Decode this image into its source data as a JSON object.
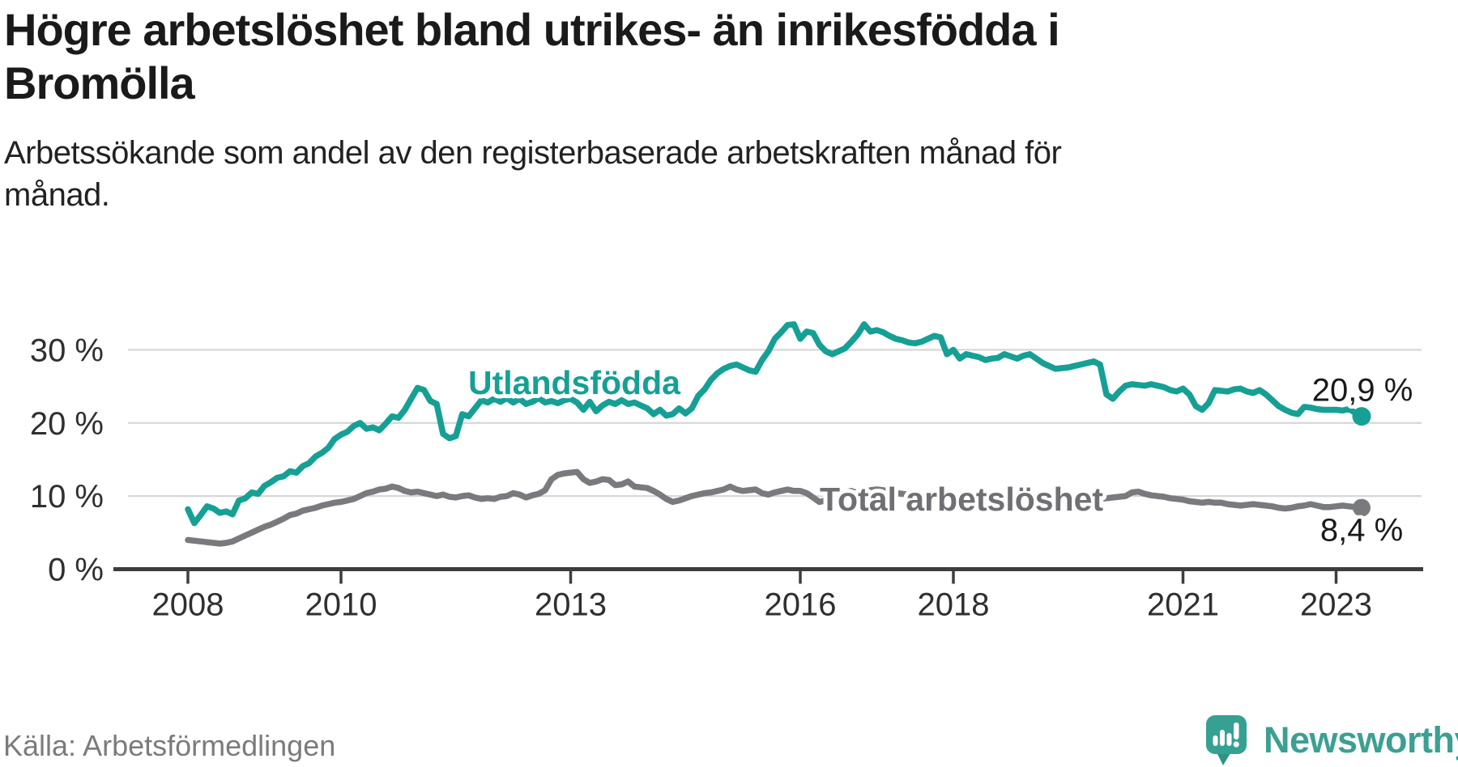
{
  "header": {
    "title_line1": "Högre arbetslöshet bland utrikes- än inrikesfödda i",
    "title_line2": "Bromölla",
    "subtitle_line1": "Arbetssökande som andel av den registerbaserade arbetskraften månad för",
    "subtitle_line2": "månad."
  },
  "chart_data": {
    "type": "line",
    "unit": "%",
    "frequency": "monthly",
    "x_start": "2008-01",
    "x_end": "2023-05",
    "x_ticks": [
      2008,
      2010,
      2013,
      2016,
      2018,
      2021,
      2023
    ],
    "y_ticks": [
      0,
      10,
      20,
      30
    ],
    "y_tick_labels": [
      "0 %",
      "10 %",
      "20 %",
      "30 %"
    ],
    "ylim": [
      0,
      35.5
    ],
    "grid": "horizontal-only",
    "legend": "direct-labels-on-lines",
    "series": [
      {
        "name": "Utlandsfödda",
        "color": "#16a095",
        "end_label": "20,9 %",
        "end_value": 20.9,
        "values": [
          8.2,
          6.3,
          7.4,
          8.6,
          8.3,
          7.7,
          7.9,
          7.5,
          9.4,
          9.7,
          10.5,
          10.3,
          11.4,
          11.9,
          12.5,
          12.7,
          13.4,
          13.2,
          14.1,
          14.5,
          15.4,
          15.9,
          16.6,
          17.8,
          18.4,
          18.8,
          19.6,
          20.0,
          19.2,
          19.4,
          19.0,
          19.9,
          20.9,
          20.7,
          21.8,
          23.3,
          24.8,
          24.5,
          23.0,
          22.6,
          18.5,
          17.9,
          18.2,
          21.2,
          20.9,
          22.0,
          23.1,
          22.8,
          23.3,
          22.9,
          23.4,
          22.8,
          23.3,
          22.6,
          22.9,
          23.4,
          22.8,
          23.0,
          22.7,
          23.1,
          23.3,
          22.8,
          21.8,
          22.9,
          21.6,
          22.4,
          22.9,
          22.6,
          23.1,
          22.6,
          22.8,
          22.4,
          22.0,
          21.2,
          21.8,
          21.0,
          21.2,
          22.0,
          21.3,
          22.0,
          23.7,
          24.6,
          25.9,
          26.8,
          27.4,
          27.8,
          28.0,
          27.6,
          27.2,
          27.0,
          28.6,
          29.8,
          31.5,
          32.4,
          33.4,
          33.5,
          31.5,
          32.5,
          32.3,
          30.7,
          29.8,
          29.4,
          29.8,
          30.2,
          31.1,
          32.1,
          33.5,
          32.5,
          32.7,
          32.4,
          31.9,
          31.5,
          31.3,
          31.0,
          30.9,
          31.1,
          31.5,
          31.9,
          31.7,
          29.4,
          30.0,
          28.8,
          29.4,
          29.2,
          29.0,
          28.6,
          28.8,
          28.9,
          29.4,
          29.1,
          28.8,
          29.2,
          29.4,
          28.8,
          28.2,
          27.8,
          27.4,
          27.5,
          27.6,
          27.8,
          28.0,
          28.2,
          28.4,
          28.0,
          23.9,
          23.3,
          24.3,
          25.1,
          25.3,
          25.2,
          25.1,
          25.3,
          25.1,
          24.9,
          24.5,
          24.3,
          24.7,
          23.9,
          22.3,
          21.8,
          22.7,
          24.5,
          24.4,
          24.3,
          24.6,
          24.7,
          24.3,
          24.1,
          24.5,
          23.9,
          23.1,
          22.3,
          21.8,
          21.4,
          21.2,
          22.2,
          22.1,
          21.9,
          21.8,
          21.8,
          21.8,
          21.7,
          21.9,
          21.4,
          20.9
        ]
      },
      {
        "name": "Total arbetslöshet",
        "color": "#797a7e",
        "end_label": "8,4 %",
        "end_value": 8.4,
        "values": [
          4.0,
          3.9,
          3.8,
          3.7,
          3.6,
          3.5,
          3.6,
          3.8,
          4.2,
          4.6,
          5.0,
          5.4,
          5.8,
          6.1,
          6.5,
          6.9,
          7.4,
          7.6,
          8.0,
          8.2,
          8.4,
          8.7,
          8.9,
          9.1,
          9.2,
          9.4,
          9.6,
          10.0,
          10.4,
          10.6,
          10.9,
          11.0,
          11.3,
          11.1,
          10.7,
          10.5,
          10.6,
          10.4,
          10.2,
          10.0,
          10.2,
          9.9,
          9.8,
          10.0,
          10.1,
          9.8,
          9.6,
          9.7,
          9.6,
          9.9,
          10.0,
          10.4,
          10.2,
          9.8,
          10.1,
          10.3,
          10.8,
          12.3,
          12.9,
          13.1,
          13.2,
          13.3,
          12.3,
          11.8,
          12.0,
          12.3,
          12.2,
          11.5,
          11.6,
          12.0,
          11.3,
          11.2,
          11.1,
          10.7,
          10.2,
          9.6,
          9.2,
          9.4,
          9.7,
          10.0,
          10.2,
          10.4,
          10.5,
          10.7,
          10.9,
          11.3,
          10.9,
          10.7,
          10.8,
          10.9,
          10.4,
          10.2,
          10.5,
          10.7,
          10.9,
          10.7,
          10.7,
          10.4,
          9.8,
          9.2,
          9.4,
          9.6,
          10.2,
          10.5,
          10.7,
          10.4,
          10.6,
          10.8,
          10.9,
          10.8,
          10.6,
          10.4,
          10.3,
          10.2,
          10.1,
          10.0,
          10.0,
          9.9,
          9.8,
          9.8,
          9.7,
          9.7,
          9.6,
          9.5,
          9.5,
          9.4,
          9.4,
          9.3,
          9.3,
          9.3,
          9.2,
          9.2,
          9.2,
          9.2,
          9.1,
          9.1,
          9.2,
          9.2,
          9.3,
          9.3,
          9.4,
          9.4,
          9.5,
          9.6,
          9.7,
          9.8,
          9.9,
          10.0,
          10.5,
          10.6,
          10.3,
          10.1,
          10.0,
          9.9,
          9.7,
          9.6,
          9.5,
          9.3,
          9.2,
          9.1,
          9.2,
          9.1,
          9.1,
          8.9,
          8.8,
          8.7,
          8.8,
          8.9,
          8.8,
          8.7,
          8.6,
          8.4,
          8.3,
          8.4,
          8.6,
          8.7,
          8.9,
          8.7,
          8.5,
          8.5,
          8.6,
          8.7,
          8.6,
          8.5,
          8.4
        ]
      }
    ]
  },
  "footer": {
    "source": "Källa: Arbetsförmedlingen",
    "brand": "Newsworthy"
  },
  "colors": {
    "accent_teal": "#16a095",
    "series_gray": "#797a7e",
    "grid": "#d7d7d7",
    "axis": "#3d3d3d",
    "text_dark": "#1a1a1a",
    "source_gray": "#7a7b7d",
    "brand_teal": "#3ba092",
    "logo_bubble": "#35a192",
    "logo_tail": "#2c9386"
  }
}
